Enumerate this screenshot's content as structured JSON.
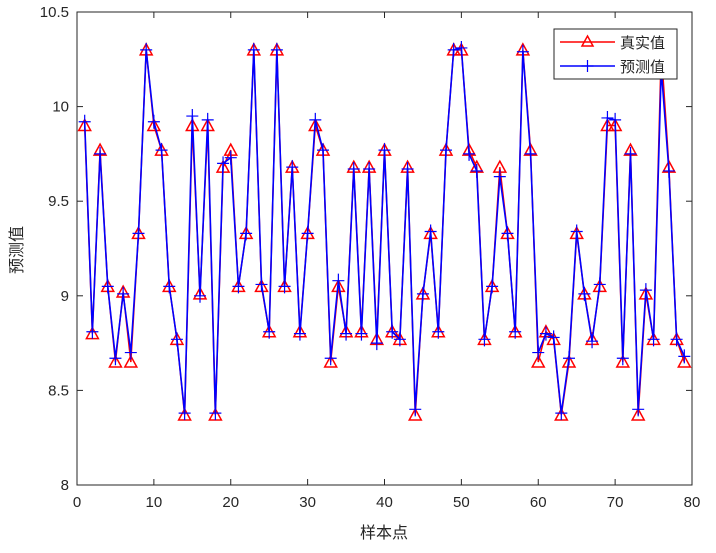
{
  "chart_data": {
    "type": "line",
    "title": "",
    "xlabel": "样本点",
    "ylabel": "预测值",
    "xlim": [
      0,
      80
    ],
    "ylim": [
      8,
      10.5
    ],
    "xticks": [
      "0",
      "10",
      "20",
      "30",
      "40",
      "50",
      "60",
      "70",
      "80"
    ],
    "yticks": [
      "8",
      "8.5",
      "9",
      "9.5",
      "10",
      "10.5"
    ],
    "grid": false,
    "legend_position": "top-right",
    "colors": {
      "true": "#ff0000",
      "pred": "#0000ff"
    },
    "x": [
      1,
      2,
      3,
      4,
      5,
      6,
      7,
      8,
      9,
      10,
      11,
      12,
      13,
      14,
      15,
      16,
      17,
      18,
      19,
      20,
      21,
      22,
      23,
      24,
      25,
      26,
      27,
      28,
      29,
      30,
      31,
      32,
      33,
      34,
      35,
      36,
      37,
      38,
      39,
      40,
      41,
      42,
      43,
      44,
      45,
      46,
      47,
      48,
      49,
      50,
      51,
      52,
      53,
      54,
      55,
      56,
      57,
      58,
      59,
      60,
      61,
      62,
      63,
      64,
      65,
      66,
      67,
      68,
      69,
      70,
      71,
      72,
      73,
      74,
      75,
      76,
      77,
      78,
      79
    ],
    "series": [
      {
        "name": "真实值",
        "marker": "triangle",
        "values": [
          9.9,
          8.8,
          9.77,
          9.05,
          8.65,
          9.02,
          8.65,
          9.33,
          10.3,
          9.9,
          9.77,
          9.05,
          8.77,
          8.37,
          9.9,
          9.01,
          9.9,
          8.37,
          9.68,
          9.77,
          9.05,
          9.33,
          10.3,
          9.05,
          8.81,
          10.3,
          9.05,
          9.68,
          8.81,
          9.33,
          9.9,
          9.77,
          8.65,
          9.05,
          8.81,
          9.68,
          8.81,
          9.68,
          8.77,
          9.77,
          8.81,
          8.77,
          9.68,
          8.37,
          9.01,
          9.33,
          8.81,
          9.77,
          10.3,
          10.3,
          9.77,
          9.68,
          8.77,
          9.05,
          9.68,
          9.33,
          8.81,
          10.3,
          9.77,
          8.65,
          8.81,
          8.77,
          8.37,
          8.65,
          9.33,
          9.01,
          8.77,
          9.05,
          9.9,
          9.9,
          8.65,
          9.77,
          8.37,
          9.01,
          8.77,
          10.3,
          9.68,
          8.77,
          8.65
        ]
      },
      {
        "name": "预测值",
        "marker": "plus",
        "values": [
          9.92,
          8.81,
          9.75,
          9.05,
          8.67,
          9.01,
          8.7,
          9.33,
          10.3,
          9.92,
          9.77,
          9.05,
          8.77,
          8.38,
          9.95,
          9.0,
          9.93,
          8.38,
          9.7,
          9.73,
          9.05,
          9.33,
          10.3,
          9.06,
          8.81,
          10.3,
          9.05,
          9.68,
          8.8,
          9.33,
          9.93,
          9.77,
          8.67,
          9.08,
          8.8,
          9.67,
          8.8,
          9.67,
          8.75,
          9.77,
          8.81,
          8.77,
          9.67,
          8.4,
          9.01,
          9.34,
          8.81,
          9.77,
          10.3,
          10.31,
          9.75,
          9.66,
          8.77,
          9.05,
          9.63,
          9.33,
          8.81,
          10.29,
          9.75,
          8.7,
          8.8,
          8.78,
          8.38,
          8.67,
          9.34,
          9.01,
          8.76,
          9.06,
          9.94,
          9.93,
          8.67,
          9.75,
          8.4,
          9.03,
          8.77,
          10.2,
          9.66,
          8.77,
          8.68
        ]
      }
    ]
  }
}
